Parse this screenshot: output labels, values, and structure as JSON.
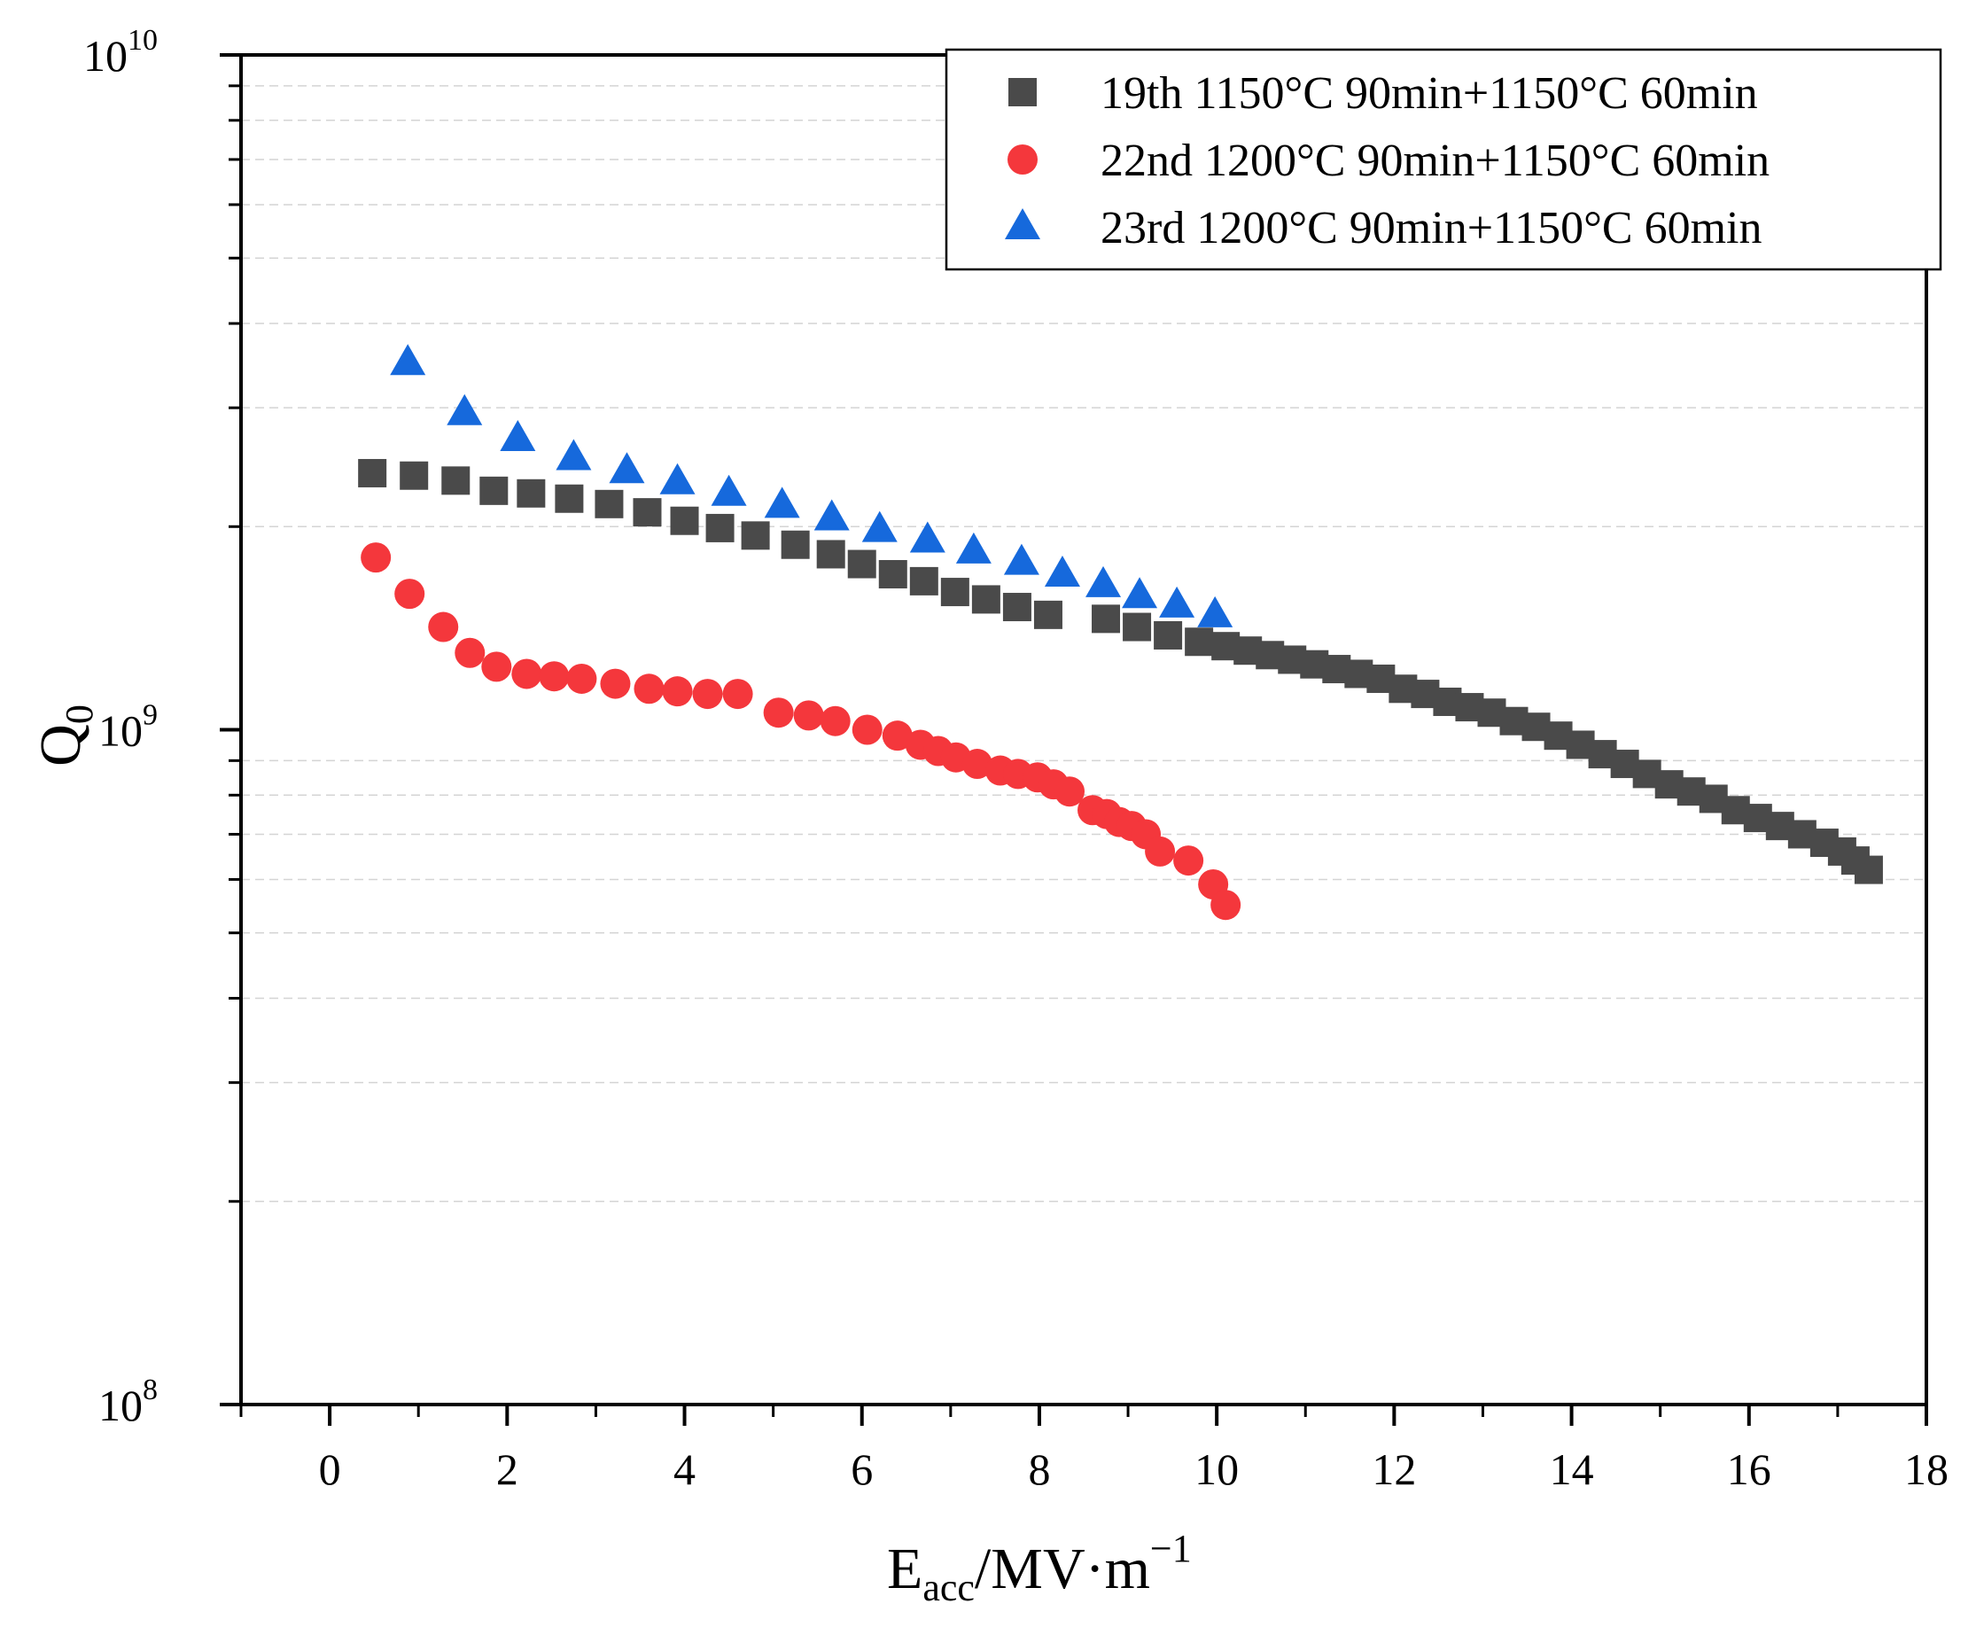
{
  "chart_data": {
    "type": "scatter",
    "title": "",
    "xlabel": {
      "main": "E",
      "sub": "acc",
      "rest": "/MV·m",
      "sup": "−1"
    },
    "ylabel": {
      "main": "Q",
      "sub": "0"
    },
    "xlim": [
      -1,
      18
    ],
    "ylim": [
      100000000,
      10000000000
    ],
    "yscale": "log",
    "x_ticks": [
      0,
      2,
      4,
      6,
      8,
      10,
      12,
      14,
      16,
      18
    ],
    "y_ticks": [
      {
        "value": 100000000,
        "base": "10",
        "exp": "8"
      },
      {
        "value": 1000000000,
        "base": "10",
        "exp": "9"
      },
      {
        "value": 10000000000,
        "base": "10",
        "exp": "10"
      }
    ],
    "grid": "dashed minor horizontal",
    "legend_position": "top-right",
    "series": [
      {
        "name": "19th 1150°C 90min+1150°C 60min",
        "marker": "square",
        "color": "#4a4a4a",
        "x": [
          0.48,
          0.95,
          1.42,
          1.85,
          2.27,
          2.7,
          3.15,
          3.58,
          4.0,
          4.4,
          4.8,
          5.25,
          5.65,
          6.0,
          6.35,
          6.7,
          7.05,
          7.4,
          7.75,
          8.1,
          8.75,
          9.1,
          9.45,
          9.8,
          10.1,
          10.35,
          10.6,
          10.85,
          11.1,
          11.35,
          11.6,
          11.85,
          12.1,
          12.35,
          12.6,
          12.85,
          13.1,
          13.35,
          13.6,
          13.85,
          14.1,
          14.35,
          14.6,
          14.85,
          15.1,
          15.35,
          15.6,
          15.85,
          16.1,
          16.35,
          16.6,
          16.85,
          17.05,
          17.2,
          17.35
        ],
        "y": [
          2400000000.0,
          2380000000.0,
          2340000000.0,
          2260000000.0,
          2240000000.0,
          2200000000.0,
          2160000000.0,
          2100000000.0,
          2040000000.0,
          1990000000.0,
          1940000000.0,
          1880000000.0,
          1820000000.0,
          1760000000.0,
          1700000000.0,
          1660000000.0,
          1600000000.0,
          1560000000.0,
          1520000000.0,
          1480000000.0,
          1460000000.0,
          1420000000.0,
          1380000000.0,
          1350000000.0,
          1330000000.0,
          1310000000.0,
          1290000000.0,
          1270000000.0,
          1250000000.0,
          1230000000.0,
          1210000000.0,
          1190000000.0,
          1150000000.0,
          1130000000.0,
          1100000000.0,
          1080000000.0,
          1060000000.0,
          1030000000.0,
          1010000000.0,
          980000000.0,
          950000000.0,
          920000000.0,
          890000000.0,
          860000000.0,
          830000000.0,
          810000000.0,
          790000000.0,
          760000000.0,
          740000000.0,
          720000000.0,
          700000000.0,
          680000000.0,
          660000000.0,
          640000000.0,
          620000000.0
        ]
      },
      {
        "name": "22nd 1200°C 90min+1150°C 60min",
        "marker": "circle",
        "color": "#f4373c",
        "x": [
          0.52,
          0.9,
          1.28,
          1.58,
          1.88,
          2.22,
          2.53,
          2.84,
          3.22,
          3.6,
          3.92,
          4.26,
          4.6,
          5.06,
          5.4,
          5.7,
          6.06,
          6.4,
          6.66,
          6.86,
          7.06,
          7.3,
          7.56,
          7.76,
          7.98,
          8.16,
          8.34,
          8.6,
          8.76,
          8.9,
          9.04,
          9.2,
          9.36,
          9.68,
          9.96,
          10.1
        ],
        "y": [
          1800000000.0,
          1590000000.0,
          1420000000.0,
          1300000000.0,
          1240000000.0,
          1210000000.0,
          1200000000.0,
          1190000000.0,
          1170000000.0,
          1150000000.0,
          1140000000.0,
          1130000000.0,
          1130000000.0,
          1060000000.0,
          1050000000.0,
          1030000000.0,
          1000000000.0,
          980000000.0,
          950000000.0,
          930000000.0,
          910000000.0,
          890000000.0,
          870000000.0,
          860000000.0,
          850000000.0,
          830000000.0,
          810000000.0,
          760000000.0,
          750000000.0,
          730000000.0,
          720000000.0,
          700000000.0,
          660000000.0,
          640000000.0,
          590000000.0,
          550000000.0
        ]
      },
      {
        "name": "23rd 1200°C 90min+1150°C 60min",
        "marker": "triangle",
        "color": "#1669dc",
        "x": [
          0.88,
          1.52,
          2.12,
          2.75,
          3.35,
          3.92,
          4.5,
          5.1,
          5.66,
          6.2,
          6.74,
          7.26,
          7.8,
          8.26,
          8.72,
          9.13,
          9.55,
          9.98
        ],
        "y": [
          3500000000.0,
          2950000000.0,
          2700000000.0,
          2530000000.0,
          2420000000.0,
          2330000000.0,
          2240000000.0,
          2150000000.0,
          2060000000.0,
          1980000000.0,
          1910000000.0,
          1840000000.0,
          1770000000.0,
          1700000000.0,
          1640000000.0,
          1580000000.0,
          1530000000.0,
          1480000000.0
        ]
      }
    ]
  }
}
